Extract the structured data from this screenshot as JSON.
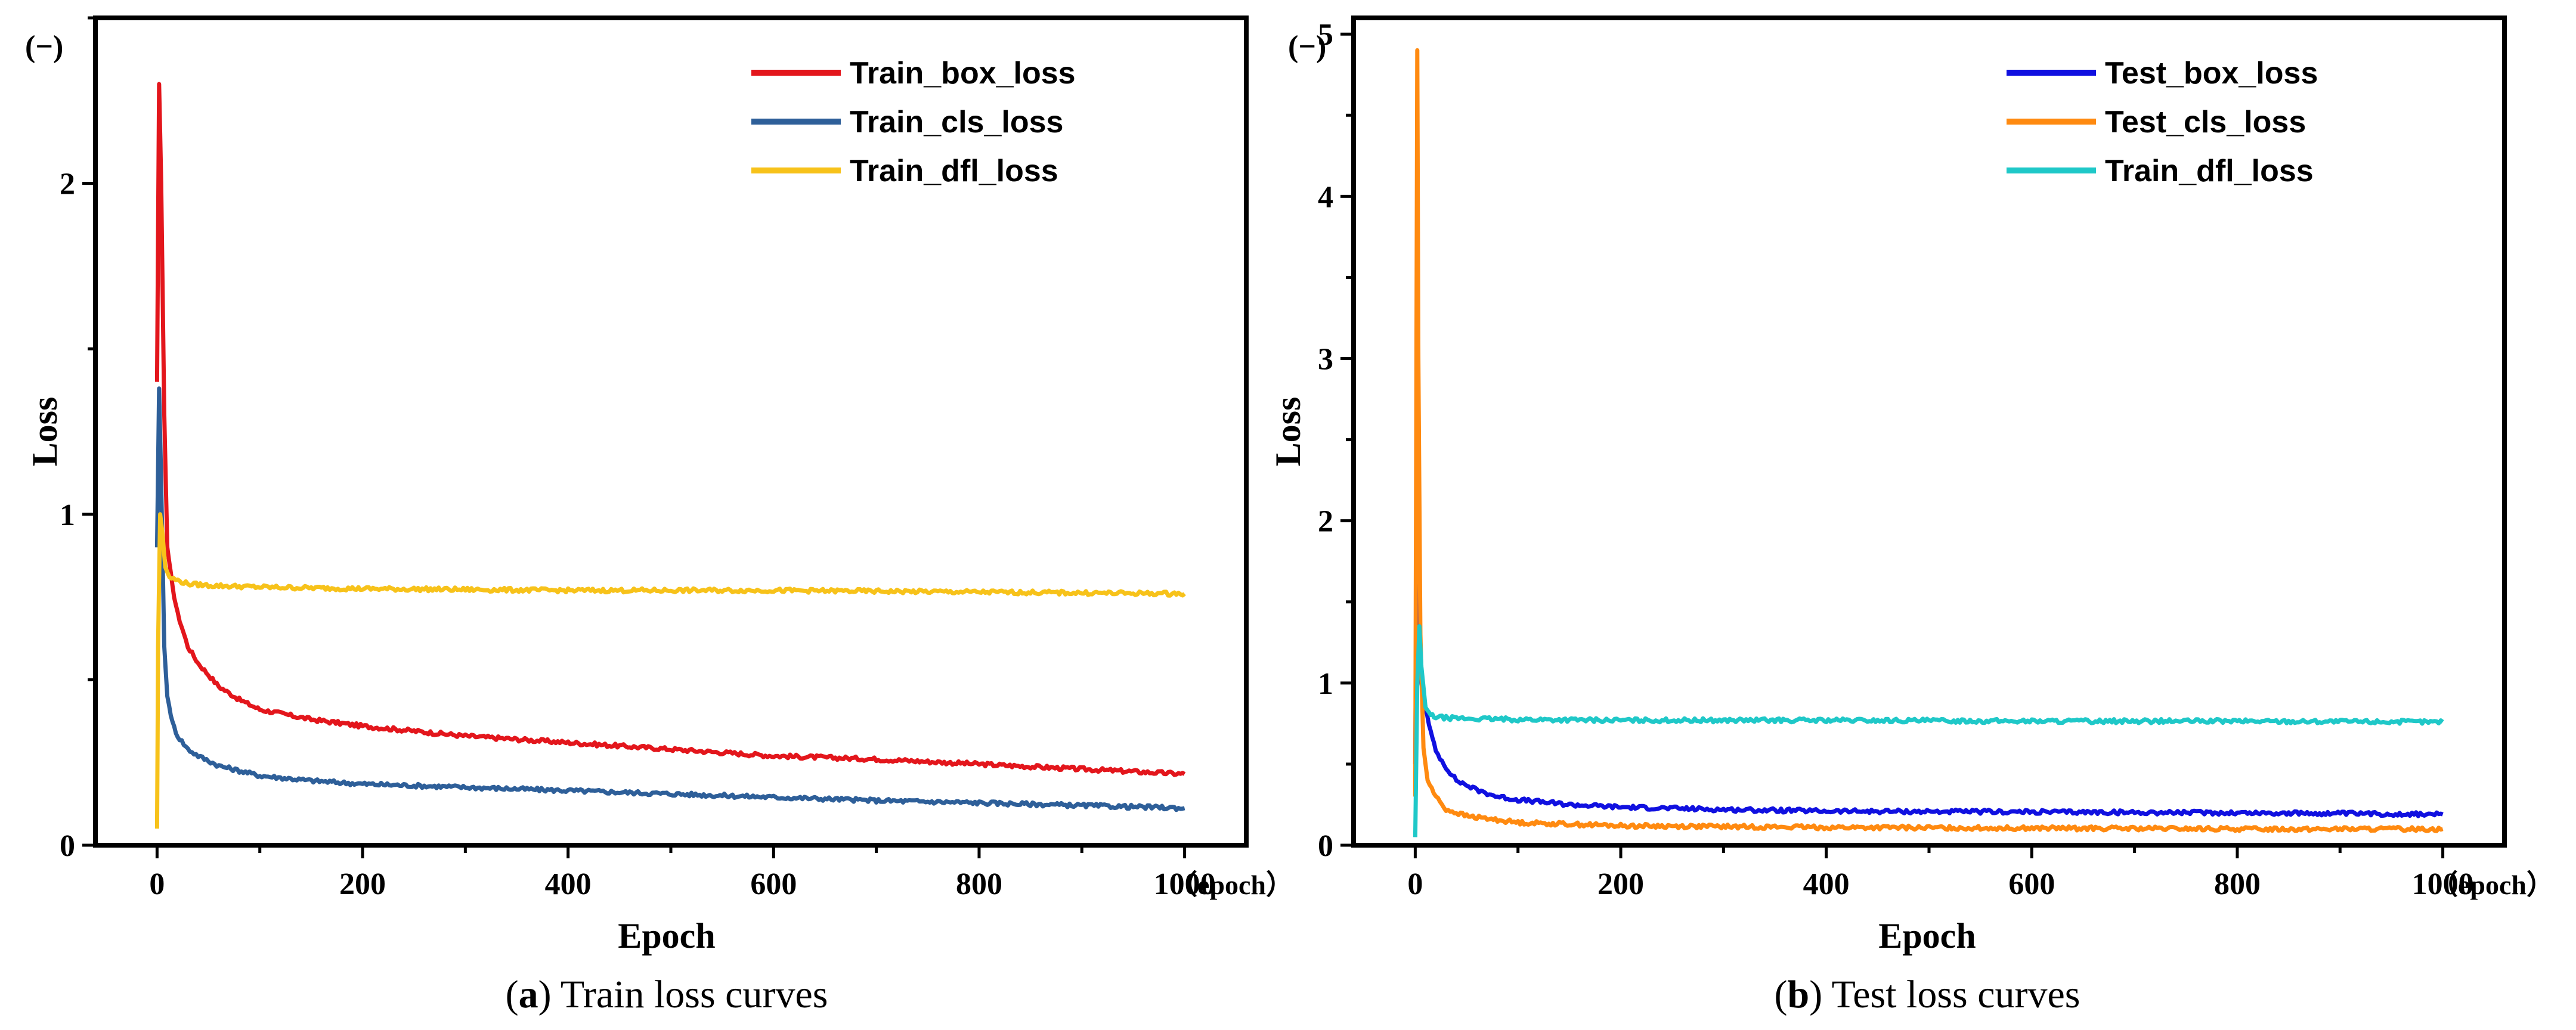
{
  "chart_data": [
    {
      "type": "line",
      "caption": {
        "open": "(",
        "letter": "a",
        "close": ")",
        "text": " Train loss curves"
      },
      "xlabel": "Epoch",
      "ylabel": "Loss",
      "x_unit": "（epoch）",
      "y_unit": "(−)",
      "xlim": [
        -60,
        1060
      ],
      "ylim": [
        0,
        2.5
      ],
      "x_ticks": [
        0,
        200,
        400,
        600,
        800,
        1000
      ],
      "y_ticks": [
        0,
        1,
        2
      ],
      "legend_position": "top-right",
      "series": [
        {
          "name": "Train_box_loss",
          "color": "#e3161c",
          "x": [
            0,
            2,
            4,
            7,
            10,
            15,
            20,
            30,
            40,
            60,
            80,
            100,
            150,
            200,
            300,
            400,
            500,
            600,
            700,
            800,
            900,
            1000
          ],
          "y": [
            1.4,
            2.3,
            2.0,
            1.3,
            0.9,
            0.78,
            0.7,
            0.6,
            0.55,
            0.48,
            0.44,
            0.41,
            0.38,
            0.36,
            0.33,
            0.31,
            0.29,
            0.27,
            0.26,
            0.245,
            0.23,
            0.215
          ]
        },
        {
          "name": "Train_cls_loss",
          "color": "#2e5f99",
          "x": [
            0,
            2,
            4,
            7,
            10,
            15,
            20,
            30,
            40,
            60,
            80,
            100,
            150,
            200,
            300,
            400,
            500,
            600,
            700,
            800,
            900,
            1000
          ],
          "y": [
            0.9,
            1.38,
            1.1,
            0.6,
            0.45,
            0.37,
            0.33,
            0.29,
            0.27,
            0.24,
            0.225,
            0.21,
            0.195,
            0.185,
            0.175,
            0.165,
            0.155,
            0.145,
            0.135,
            0.128,
            0.12,
            0.112
          ]
        },
        {
          "name": "Train_dfl_loss",
          "color": "#f7c21a",
          "x": [
            0,
            1,
            3,
            5,
            8,
            12,
            20,
            30,
            50,
            100,
            200,
            400,
            600,
            800,
            1000
          ],
          "y": [
            0.05,
            0.6,
            1.0,
            0.95,
            0.84,
            0.81,
            0.8,
            0.79,
            0.785,
            0.78,
            0.775,
            0.77,
            0.77,
            0.765,
            0.76
          ]
        }
      ]
    },
    {
      "type": "line",
      "caption": {
        "open": "(",
        "letter": "b",
        "close": ")",
        "text": " Test loss curves"
      },
      "xlabel": "Epoch",
      "ylabel": "Loss",
      "x_unit": "（epoch）",
      "y_unit": "(−)",
      "xlim": [
        -60,
        1060
      ],
      "ylim": [
        0,
        5.1
      ],
      "x_ticks": [
        0,
        200,
        400,
        600,
        800,
        1000
      ],
      "y_ticks": [
        0,
        1,
        2,
        3,
        4,
        5
      ],
      "legend_position": "top-right",
      "series": [
        {
          "name": "Test_box_loss",
          "color": "#1010e0",
          "x": [
            0,
            2,
            4,
            6,
            10,
            15,
            20,
            30,
            40,
            60,
            80,
            100,
            150,
            200,
            300,
            400,
            600,
            800,
            1000
          ],
          "y": [
            0.5,
            2.5,
            1.3,
            1.0,
            0.85,
            0.7,
            0.58,
            0.48,
            0.4,
            0.34,
            0.3,
            0.28,
            0.25,
            0.235,
            0.22,
            0.21,
            0.205,
            0.2,
            0.19
          ]
        },
        {
          "name": "Test_cls_loss",
          "color": "#ff8a10",
          "x": [
            0,
            2,
            3,
            5,
            8,
            12,
            20,
            30,
            50,
            100,
            200,
            400,
            600,
            800,
            1000
          ],
          "y": [
            0.3,
            4.9,
            3.0,
            1.3,
            0.6,
            0.4,
            0.3,
            0.22,
            0.18,
            0.14,
            0.12,
            0.11,
            0.105,
            0.1,
            0.1
          ]
        },
        {
          "name": "Train_dfl_loss",
          "color": "#1fc8c8",
          "x": [
            0,
            2,
            4,
            6,
            10,
            15,
            20,
            30,
            50,
            100,
            200,
            400,
            600,
            800,
            1000
          ],
          "y": [
            0.05,
            1.0,
            1.35,
            1.1,
            0.85,
            0.8,
            0.79,
            0.785,
            0.78,
            0.775,
            0.77,
            0.77,
            0.765,
            0.765,
            0.76
          ]
        }
      ]
    }
  ]
}
